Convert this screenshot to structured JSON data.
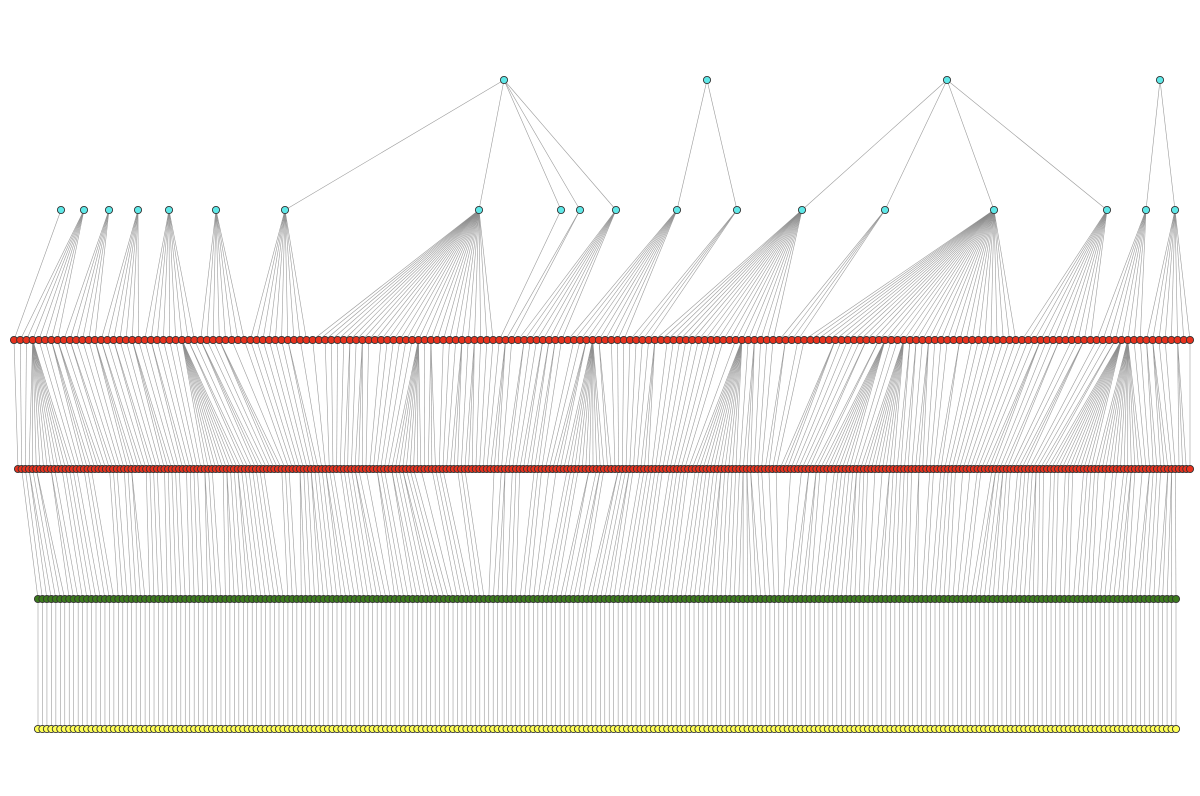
{
  "diagram": {
    "type": "hierarchical-tree",
    "edge_color": "#8a8a8a",
    "node_stroke": "#333333",
    "levels": [
      {
        "name": "level-0",
        "color": "#5fe8e8"
      },
      {
        "name": "level-1",
        "color": "#5fe8e8"
      },
      {
        "name": "level-2",
        "color": "#e8321e"
      },
      {
        "name": "level-3",
        "color": "#e8321e"
      },
      {
        "name": "level-4",
        "color": "#3c7a1c"
      },
      {
        "name": "level-5",
        "color": "#ffff55"
      }
    ],
    "root_count": 4,
    "level1_parents": [
      null,
      null,
      null,
      null,
      null,
      null,
      0,
      0,
      0,
      0,
      0,
      1,
      1,
      2,
      2,
      2,
      2,
      3,
      3
    ],
    "level1_child_counts": [
      1,
      7,
      6,
      7,
      9,
      8,
      10,
      30,
      1,
      2,
      8,
      10,
      4,
      20,
      4,
      35,
      12,
      8,
      8
    ]
  }
}
